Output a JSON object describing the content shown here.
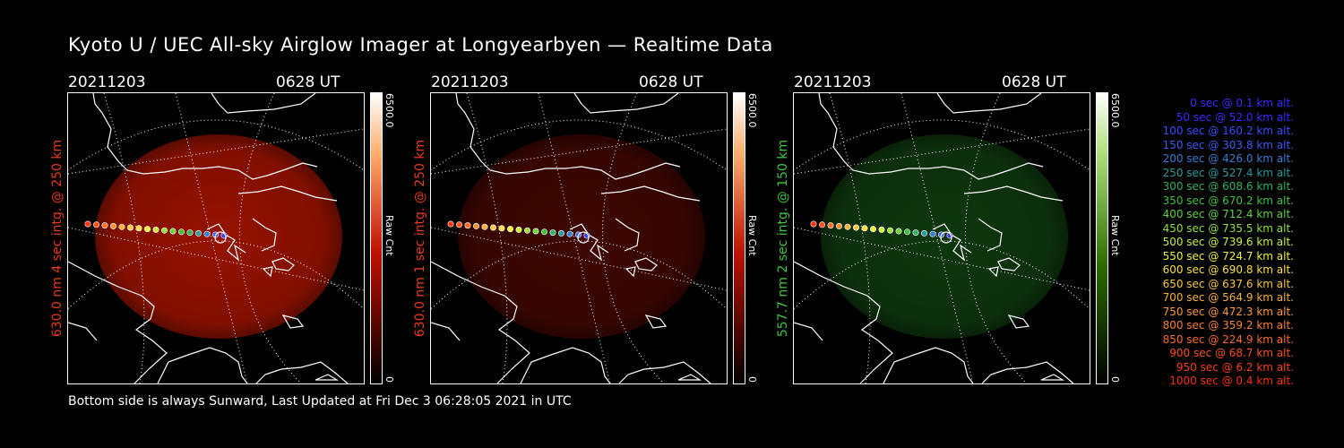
{
  "title": "Kyoto U / UEC All-sky Airglow Imager at Longyearbyen — Realtime Data",
  "panels": [
    {
      "date": "20211203",
      "time": "0628 UT",
      "label": "630.0 nm 4 sec intg. @ 250 km",
      "label_color": "#e83a1a",
      "cbar_max": "6500.0",
      "cbar_unit": "Raw Cnt",
      "cbar_min": "0",
      "glow_color": "#a81400",
      "glow_opacity": 0.9,
      "cbar_color": "#c01000"
    },
    {
      "date": "20211203",
      "time": "0628 UT",
      "label": "630.0 nm 1 sec intg. @ 250 km",
      "label_color": "#e83a1a",
      "cbar_max": "6500.0",
      "cbar_unit": "Raw Cnt",
      "cbar_min": "0",
      "glow_color": "#5a0a04",
      "glow_opacity": 0.7,
      "cbar_color": "#c01000"
    },
    {
      "date": "20211203",
      "time": "0628 UT",
      "label": "557.7 nm 2 sec intg. @ 150 km",
      "label_color": "#3ec53e",
      "cbar_max": "6500.0",
      "cbar_unit": "Raw Cnt",
      "cbar_min": "0",
      "glow_color": "#134a13",
      "glow_opacity": 0.75,
      "cbar_color": "#3a8a00"
    }
  ],
  "footer": "Bottom side is always Sunward, Last Updated at Fri Dec  3 06:28:05 2021 in UTC",
  "legend": [
    {
      "text": "0 sec @   0.1 km alt.",
      "color": "#3a2cff"
    },
    {
      "text": "50 sec @  52.0 km alt.",
      "color": "#3a2cff"
    },
    {
      "text": "100 sec @ 160.2 km alt.",
      "color": "#3a4cff"
    },
    {
      "text": "150 sec @ 303.8 km alt.",
      "color": "#3a5cf0"
    },
    {
      "text": "200 sec @ 426.0 km alt.",
      "color": "#3a7cd0"
    },
    {
      "text": "250 sec @ 527.4 km alt.",
      "color": "#2a9aa0"
    },
    {
      "text": "300 sec @ 608.6 km alt.",
      "color": "#30b060"
    },
    {
      "text": "350 sec @ 670.2 km alt.",
      "color": "#40c040"
    },
    {
      "text": "400 sec @ 712.4 km alt.",
      "color": "#60d040"
    },
    {
      "text": "450 sec @ 735.5 km alt.",
      "color": "#90e040"
    },
    {
      "text": "500 sec @ 739.6 km alt.",
      "color": "#c8f040"
    },
    {
      "text": "550 sec @ 724.7 km alt.",
      "color": "#f0f040"
    },
    {
      "text": "600 sec @ 690.8 km alt.",
      "color": "#f8e040"
    },
    {
      "text": "650 sec @ 637.6 km alt.",
      "color": "#f8c840"
    },
    {
      "text": "700 sec @ 564.9 km alt.",
      "color": "#f8b038"
    },
    {
      "text": "750 sec @ 472.3 km alt.",
      "color": "#f89838"
    },
    {
      "text": "800 sec @ 359.2 km alt.",
      "color": "#f88030"
    },
    {
      "text": "850 sec @ 224.9 km alt.",
      "color": "#f86828"
    },
    {
      "text": "900 sec @  68.7 km alt.",
      "color": "#f85020"
    },
    {
      "text": "950 sec @   6.2 km alt.",
      "color": "#f84018"
    },
    {
      "text": "1000 sec @   0.4 km alt.",
      "color": "#f83010"
    }
  ],
  "track_colors": [
    "#ff3010",
    "#ff5020",
    "#ff7028",
    "#ff9038",
    "#ffb040",
    "#ffc840",
    "#ffe040",
    "#f0f040",
    "#d0f040",
    "#a0e040",
    "#70d040",
    "#40c040",
    "#30b060",
    "#2a9aa0",
    "#3a7cd0",
    "#3a5cf0",
    "#3a3cff"
  ]
}
